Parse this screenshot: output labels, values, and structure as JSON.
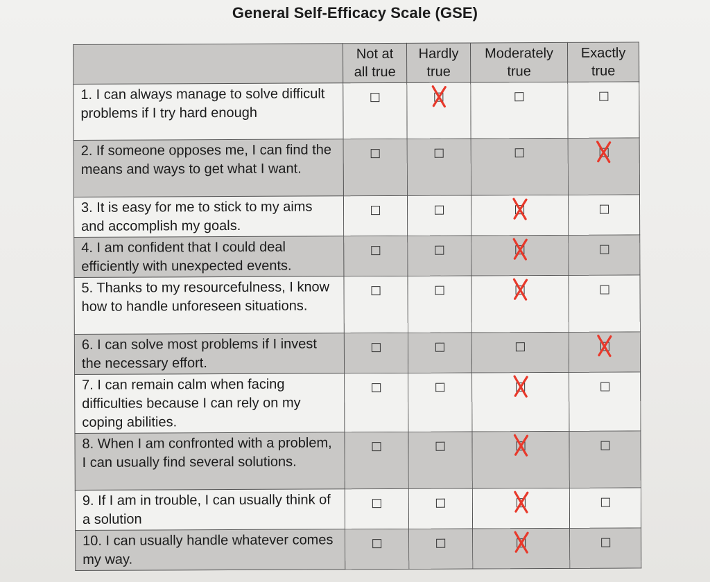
{
  "title": "General Self-Efficacy Scale (GSE)",
  "columns": [
    "",
    "Not at all true",
    "Hardly true",
    "Moderately true",
    "Exactly true"
  ],
  "column_lines": [
    [
      "Not at",
      "all true"
    ],
    [
      "Hardly",
      "true"
    ],
    [
      "Moderately",
      "true"
    ],
    [
      "Exactly",
      "true"
    ]
  ],
  "items": [
    {
      "text": "1. I can always manage to solve difficult problems if I try hard enough",
      "checked": 1
    },
    {
      "text": "2. If someone opposes me, I can find the means and ways to get what I want.",
      "checked": 3
    },
    {
      "text": "3. It is easy for me to stick to my aims and accomplish my goals.",
      "checked": 2
    },
    {
      "text": "4. I am confident that I could deal efficiently with unexpected events.",
      "checked": 2
    },
    {
      "text": "5. Thanks to my resourcefulness, I know how to handle unforeseen situations.",
      "checked": 2
    },
    {
      "text": "6. I can solve most problems if I invest the necessary effort.",
      "checked": 3
    },
    {
      "text": "7. I can remain calm when facing difficulties because I can rely on my coping abilities.",
      "checked": 2
    },
    {
      "text": "8. When I am confronted with a problem, I can usually find several solutions.",
      "checked": 2
    },
    {
      "text": "9. If I am in trouble, I can usually think of a solution",
      "checked": 2
    },
    {
      "text": "10. I can usually handle whatever comes my way.",
      "checked": 2
    }
  ],
  "colors": {
    "mark": "#e8392b",
    "shade": "#c9c8c6",
    "grid": "#555555"
  }
}
